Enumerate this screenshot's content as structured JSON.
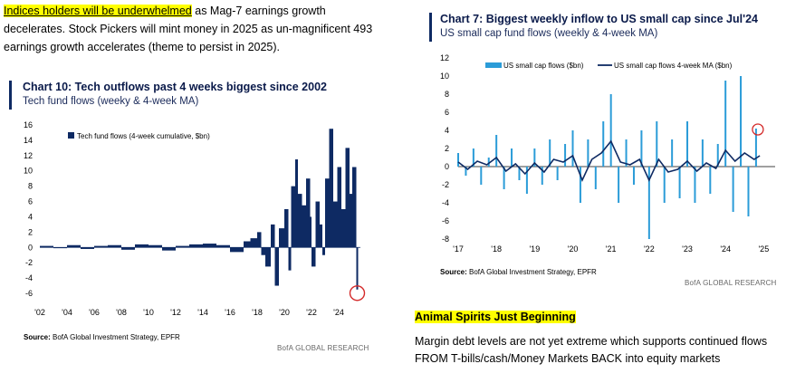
{
  "intro": {
    "highlight": "Indices holders will be underwhelmed",
    "text": " as Mag-7 earnings growth decelerates.  Stock Pickers will mint money in 2025 as un-magnificent 493 earnings growth accelerates (theme to persist in 2025)."
  },
  "colors": {
    "navy": "#0e2a63",
    "light_blue": "#2b9cd8",
    "highlight": "#ffff00",
    "marker": "#d42a2a"
  },
  "chart_data": [
    {
      "type": "bar",
      "title": "Chart 10: Tech outflows past 4 weeks biggest since 2002",
      "subtitle": "Tech fund flows (weeky & 4-week MA)",
      "legend": [
        "Tech fund flows (4-week cumulative, $bn)"
      ],
      "legend_placement": "top-center",
      "xlabel": "",
      "ylabel": "",
      "ylim": [
        -6,
        16
      ],
      "yticks": [
        "16",
        "14",
        "12",
        "10",
        "8",
        "6",
        "4",
        "2",
        "0",
        "-2",
        "-4",
        "-6"
      ],
      "xticks": [
        "'02",
        "'04",
        "'06",
        "'08",
        "'10",
        "'12",
        "'14",
        "'16",
        "'18",
        "'20",
        "'22",
        "'24"
      ],
      "series": [
        {
          "values": [
            [
              2002.0,
              0.2
            ],
            [
              2003.0,
              -0.1
            ],
            [
              2004.0,
              0.3
            ],
            [
              2005.0,
              -0.2
            ],
            [
              2006.0,
              0.2
            ],
            [
              2007.0,
              0.3
            ],
            [
              2008.0,
              -0.3
            ],
            [
              2009.0,
              0.4
            ],
            [
              2010.0,
              0.3
            ],
            [
              2011.0,
              -0.4
            ],
            [
              2012.0,
              0.2
            ],
            [
              2013.0,
              0.4
            ],
            [
              2014.0,
              0.5
            ],
            [
              2015.0,
              0.3
            ],
            [
              2016.0,
              -0.6
            ],
            [
              2017.0,
              0.8
            ],
            [
              2017.5,
              1.2
            ],
            [
              2018.0,
              2.0
            ],
            [
              2018.3,
              -1.0
            ],
            [
              2018.6,
              -2.5
            ],
            [
              2019.0,
              3.0
            ],
            [
              2019.3,
              -5.0
            ],
            [
              2019.6,
              2.5
            ],
            [
              2020.0,
              5.0
            ],
            [
              2020.3,
              -3.0
            ],
            [
              2020.5,
              8.0
            ],
            [
              2020.8,
              11.5
            ],
            [
              2021.0,
              7.0
            ],
            [
              2021.3,
              5.5
            ],
            [
              2021.6,
              9.0
            ],
            [
              2021.9,
              4.0
            ],
            [
              2022.0,
              -2.5
            ],
            [
              2022.3,
              6.0
            ],
            [
              2022.6,
              3.0
            ],
            [
              2022.8,
              -1.0
            ],
            [
              2023.0,
              9.0
            ],
            [
              2023.3,
              15.5
            ],
            [
              2023.6,
              6.0
            ],
            [
              2023.9,
              10.5
            ],
            [
              2024.2,
              5.0
            ],
            [
              2024.5,
              13.0
            ],
            [
              2024.8,
              7.0
            ],
            [
              2025.0,
              10.5
            ],
            [
              2025.3,
              -5.5
            ]
          ]
        }
      ],
      "source_label": "Source:",
      "source_text": " BofA Global Investment Strategy, EPFR",
      "brand": "BofA GLOBAL RESEARCH"
    },
    {
      "type": "line",
      "title": "Chart 7: Biggest weekly inflow to US small cap since Jul'24",
      "subtitle": "US small cap fund flows (weekly & 4-week MA)",
      "legend": [
        "US small cap flows ($bn)",
        "US small cap flows 4-week MA ($bn)"
      ],
      "legend_placement": "top",
      "xlabel": "",
      "ylabel": "",
      "ylim": [
        -8,
        12
      ],
      "yticks": [
        "12",
        "10",
        "8",
        "6",
        "4",
        "2",
        "0",
        "-2",
        "-4",
        "-6",
        "-8"
      ],
      "xticks": [
        "'17",
        "'18",
        "'19",
        "'20",
        "'21",
        "'22",
        "'23",
        "'24",
        "'25"
      ],
      "series": [
        {
          "name": "US small cap flows ($bn)",
          "values": [
            [
              2017.0,
              1.5
            ],
            [
              2017.2,
              -1.0
            ],
            [
              2017.4,
              2.0
            ],
            [
              2017.6,
              -2.0
            ],
            [
              2017.8,
              1.0
            ],
            [
              2018.0,
              3.5
            ],
            [
              2018.2,
              -2.5
            ],
            [
              2018.4,
              2.0
            ],
            [
              2018.6,
              -1.5
            ],
            [
              2018.8,
              -3.0
            ],
            [
              2019.0,
              2.0
            ],
            [
              2019.2,
              -2.0
            ],
            [
              2019.4,
              3.0
            ],
            [
              2019.6,
              -1.5
            ],
            [
              2019.8,
              2.5
            ],
            [
              2020.0,
              4.0
            ],
            [
              2020.2,
              -4.0
            ],
            [
              2020.4,
              3.0
            ],
            [
              2020.6,
              -2.5
            ],
            [
              2020.8,
              5.0
            ],
            [
              2021.0,
              8.0
            ],
            [
              2021.2,
              -4.0
            ],
            [
              2021.4,
              3.0
            ],
            [
              2021.6,
              -2.0
            ],
            [
              2021.8,
              4.0
            ],
            [
              2022.0,
              -8.0
            ],
            [
              2022.2,
              5.0
            ],
            [
              2022.4,
              -4.0
            ],
            [
              2022.6,
              3.0
            ],
            [
              2022.8,
              -3.5
            ],
            [
              2023.0,
              5.0
            ],
            [
              2023.2,
              -4.0
            ],
            [
              2023.4,
              3.0
            ],
            [
              2023.6,
              -3.0
            ],
            [
              2023.8,
              2.5
            ],
            [
              2024.0,
              9.5
            ],
            [
              2024.2,
              -5.0
            ],
            [
              2024.4,
              10.0
            ],
            [
              2024.6,
              -5.5
            ],
            [
              2024.8,
              4.2
            ]
          ]
        },
        {
          "name": "US small cap flows 4-week MA ($bn)",
          "values": [
            [
              2017.0,
              0.5
            ],
            [
              2017.25,
              -0.3
            ],
            [
              2017.5,
              0.6
            ],
            [
              2017.75,
              0.2
            ],
            [
              2018.0,
              1.0
            ],
            [
              2018.25,
              -0.5
            ],
            [
              2018.5,
              0.3
            ],
            [
              2018.75,
              -0.8
            ],
            [
              2019.0,
              0.4
            ],
            [
              2019.25,
              -0.6
            ],
            [
              2019.5,
              0.8
            ],
            [
              2019.75,
              0.5
            ],
            [
              2020.0,
              1.2
            ],
            [
              2020.25,
              -1.5
            ],
            [
              2020.5,
              0.8
            ],
            [
              2020.75,
              1.5
            ],
            [
              2021.0,
              2.8
            ],
            [
              2021.25,
              0.5
            ],
            [
              2021.5,
              0.2
            ],
            [
              2021.75,
              0.8
            ],
            [
              2022.0,
              -1.5
            ],
            [
              2022.25,
              0.8
            ],
            [
              2022.5,
              -0.6
            ],
            [
              2022.75,
              -0.3
            ],
            [
              2023.0,
              0.6
            ],
            [
              2023.25,
              -0.5
            ],
            [
              2023.5,
              0.4
            ],
            [
              2023.75,
              -0.2
            ],
            [
              2024.0,
              1.8
            ],
            [
              2024.25,
              0.6
            ],
            [
              2024.5,
              1.5
            ],
            [
              2024.75,
              0.8
            ],
            [
              2024.9,
              1.2
            ]
          ]
        }
      ],
      "source_label": "Source:",
      "source_text": " BofA Global Investment Strategy, EPFR",
      "brand": "BofA GLOBAL RESEARCH"
    }
  ],
  "right_note": {
    "heading": "Animal Spirits Just Beginning",
    "text": "Margin debt levels are not yet extreme which supports continued flows FROM T-bills/cash/Money Markets BACK into equity markets"
  }
}
